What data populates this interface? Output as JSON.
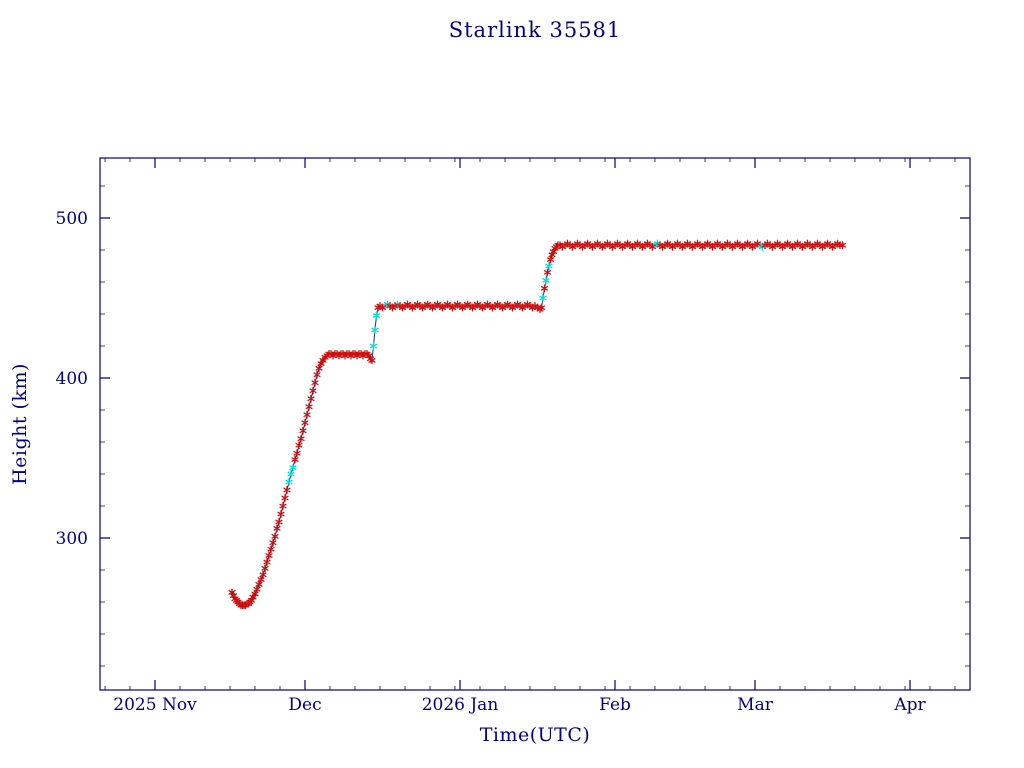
{
  "chart_data": {
    "type": "scatter",
    "title": "Starlink 35581",
    "xlabel": "Time(UTC)",
    "ylabel": "Height (km)",
    "x_unit": "days since 2025-11-01",
    "xlim": [
      -11,
      163
    ],
    "ylim": [
      205,
      537.5
    ],
    "grid": false,
    "legend": "none",
    "x_ticks": [
      {
        "day": 0,
        "label": "2025 Nov"
      },
      {
        "day": 30,
        "label": "Dec"
      },
      {
        "day": 61,
        "label": "2026 Jan"
      },
      {
        "day": 92,
        "label": "Feb"
      },
      {
        "day": 120,
        "label": "Mar"
      },
      {
        "day": 151,
        "label": "Apr"
      }
    ],
    "x_minor_step": 5,
    "y_ticks": [
      300,
      400,
      500
    ],
    "y_minor_step": 20,
    "colors": {
      "marker_primary": "#cc1010",
      "marker_secondary": "#00dcdc",
      "line": "#14145f",
      "axis": "#000082",
      "text": "#000082"
    },
    "series": [
      {
        "name": "height",
        "marker": "asterisk",
        "points": [
          [
            15.4,
            266
          ],
          [
            15.7,
            264
          ],
          [
            16.0,
            262
          ],
          [
            16.3,
            261
          ],
          [
            16.6,
            260
          ],
          [
            16.9,
            259
          ],
          [
            17.2,
            258
          ],
          [
            17.5,
            258
          ],
          [
            17.8,
            258
          ],
          [
            18.1,
            258
          ],
          [
            18.4,
            259
          ],
          [
            18.7,
            259
          ],
          [
            19.0,
            260
          ],
          [
            19.3,
            261
          ],
          [
            19.6,
            263
          ],
          [
            20.0,
            265
          ],
          [
            20.4,
            268
          ],
          [
            20.8,
            271
          ],
          [
            21.2,
            274
          ],
          [
            21.6,
            277
          ],
          [
            22.0,
            281
          ],
          [
            22.4,
            285
          ],
          [
            22.8,
            289
          ],
          [
            23.2,
            293
          ],
          [
            23.6,
            297
          ],
          [
            24.0,
            301
          ],
          [
            24.4,
            306
          ],
          [
            24.8,
            310
          ],
          [
            25.2,
            315
          ],
          [
            25.6,
            320
          ],
          [
            26.0,
            325
          ],
          [
            26.4,
            330
          ],
          [
            26.8,
            335,
            "c"
          ],
          [
            27.2,
            340,
            "c"
          ],
          [
            27.6,
            344,
            "c"
          ],
          [
            28.0,
            349
          ],
          [
            28.4,
            353
          ],
          [
            28.8,
            358
          ],
          [
            29.2,
            362
          ],
          [
            29.6,
            367
          ],
          [
            30.0,
            372
          ],
          [
            30.4,
            377
          ],
          [
            30.8,
            382
          ],
          [
            31.2,
            387
          ],
          [
            31.6,
            392
          ],
          [
            32.0,
            397
          ],
          [
            32.4,
            402
          ],
          [
            32.8,
            406
          ],
          [
            33.2,
            409
          ],
          [
            33.6,
            411
          ],
          [
            34.0,
            413
          ],
          [
            34.4,
            414
          ],
          [
            34.8,
            415
          ],
          [
            35.2,
            415
          ],
          [
            35.6,
            414
          ],
          [
            36.0,
            415
          ],
          [
            36.4,
            415
          ],
          [
            36.8,
            414
          ],
          [
            37.2,
            415
          ],
          [
            37.6,
            415
          ],
          [
            38.0,
            414
          ],
          [
            38.4,
            415
          ],
          [
            38.8,
            415
          ],
          [
            39.2,
            414
          ],
          [
            39.6,
            415
          ],
          [
            40.0,
            415
          ],
          [
            40.4,
            414
          ],
          [
            40.8,
            415
          ],
          [
            41.2,
            415
          ],
          [
            41.6,
            414
          ],
          [
            42.0,
            415
          ],
          [
            42.4,
            415
          ],
          [
            42.8,
            414
          ],
          [
            43.1,
            412
          ],
          [
            43.4,
            411
          ],
          [
            43.7,
            420,
            "c"
          ],
          [
            44.0,
            430,
            "c"
          ],
          [
            44.3,
            439,
            "c"
          ],
          [
            44.6,
            444
          ],
          [
            45.0,
            445
          ],
          [
            45.5,
            444
          ],
          [
            46.0,
            445,
            "c"
          ],
          [
            46.5,
            446,
            "c"
          ],
          [
            47.0,
            445
          ],
          [
            47.5,
            444
          ],
          [
            48.0,
            445
          ],
          [
            48.5,
            446,
            "c"
          ],
          [
            49.0,
            445
          ],
          [
            49.5,
            444
          ],
          [
            50.0,
            445
          ],
          [
            50.5,
            446
          ],
          [
            51.0,
            445
          ],
          [
            51.5,
            444
          ],
          [
            52.0,
            445
          ],
          [
            52.5,
            446
          ],
          [
            53.0,
            445
          ],
          [
            53.5,
            444
          ],
          [
            54.0,
            445
          ],
          [
            54.5,
            446
          ],
          [
            55.0,
            445
          ],
          [
            55.5,
            444
          ],
          [
            56.0,
            445
          ],
          [
            56.5,
            446
          ],
          [
            57.0,
            445
          ],
          [
            57.5,
            444
          ],
          [
            58.0,
            445
          ],
          [
            58.5,
            446
          ],
          [
            59.0,
            445
          ],
          [
            59.5,
            444
          ],
          [
            60.0,
            445
          ],
          [
            60.5,
            446
          ],
          [
            61.0,
            445
          ],
          [
            61.5,
            444
          ],
          [
            62.0,
            445
          ],
          [
            62.5,
            446
          ],
          [
            63.0,
            445
          ],
          [
            63.5,
            444
          ],
          [
            64.0,
            445
          ],
          [
            64.5,
            446
          ],
          [
            65.0,
            445
          ],
          [
            65.5,
            444
          ],
          [
            66.0,
            445
          ],
          [
            66.5,
            446
          ],
          [
            67.0,
            445
          ],
          [
            67.5,
            444
          ],
          [
            68.0,
            445
          ],
          [
            68.5,
            446
          ],
          [
            69.0,
            445
          ],
          [
            69.5,
            444
          ],
          [
            70.0,
            445
          ],
          [
            70.5,
            446
          ],
          [
            71.0,
            445
          ],
          [
            71.5,
            444
          ],
          [
            72.0,
            445
          ],
          [
            72.5,
            446
          ],
          [
            73.0,
            445
          ],
          [
            73.5,
            444
          ],
          [
            74.0,
            445
          ],
          [
            74.5,
            446
          ],
          [
            75.0,
            445
          ],
          [
            75.5,
            444
          ],
          [
            76.0,
            445
          ],
          [
            76.5,
            444
          ],
          [
            77.0,
            443
          ],
          [
            77.3,
            444
          ],
          [
            77.6,
            450,
            "c"
          ],
          [
            77.9,
            456
          ],
          [
            78.2,
            461,
            "c"
          ],
          [
            78.5,
            466
          ],
          [
            78.8,
            470,
            "c"
          ],
          [
            79.1,
            474
          ],
          [
            79.4,
            477
          ],
          [
            79.7,
            479
          ],
          [
            80.0,
            481
          ],
          [
            80.3,
            482
          ],
          [
            80.6,
            483
          ],
          [
            81.0,
            483
          ],
          [
            81.5,
            482
          ],
          [
            82.0,
            483
          ],
          [
            82.5,
            484
          ],
          [
            83.0,
            483
          ],
          [
            83.5,
            482
          ],
          [
            84.0,
            483
          ],
          [
            84.5,
            484
          ],
          [
            85.0,
            483
          ],
          [
            85.5,
            482
          ],
          [
            86.0,
            483
          ],
          [
            86.5,
            484
          ],
          [
            87.0,
            483
          ],
          [
            87.5,
            482
          ],
          [
            88.0,
            483
          ],
          [
            88.5,
            484
          ],
          [
            89.0,
            483
          ],
          [
            89.5,
            482
          ],
          [
            90.0,
            483
          ],
          [
            90.5,
            484
          ],
          [
            91.0,
            483
          ],
          [
            91.5,
            482
          ],
          [
            92.0,
            483
          ],
          [
            92.5,
            484
          ],
          [
            93.0,
            483
          ],
          [
            93.5,
            482
          ],
          [
            94.0,
            483
          ],
          [
            94.5,
            484
          ],
          [
            95.0,
            483
          ],
          [
            95.5,
            482
          ],
          [
            96.0,
            483
          ],
          [
            96.5,
            484
          ],
          [
            97.0,
            483
          ],
          [
            97.5,
            482
          ],
          [
            98.0,
            483
          ],
          [
            98.5,
            484
          ],
          [
            99.0,
            483
          ],
          [
            99.5,
            482
          ],
          [
            100.0,
            483,
            "c"
          ],
          [
            100.5,
            484,
            "c"
          ],
          [
            101.0,
            483
          ],
          [
            101.5,
            482
          ],
          [
            102.0,
            483
          ],
          [
            102.5,
            484
          ],
          [
            103.0,
            483
          ],
          [
            103.5,
            482
          ],
          [
            104.0,
            483
          ],
          [
            104.5,
            484
          ],
          [
            105.0,
            483
          ],
          [
            105.5,
            482
          ],
          [
            106.0,
            483
          ],
          [
            106.5,
            484
          ],
          [
            107.0,
            483
          ],
          [
            107.5,
            482
          ],
          [
            108.0,
            483
          ],
          [
            108.5,
            484
          ],
          [
            109.0,
            483
          ],
          [
            109.5,
            482
          ],
          [
            110.0,
            483
          ],
          [
            110.5,
            484
          ],
          [
            111.0,
            483
          ],
          [
            111.5,
            482
          ],
          [
            112.0,
            483
          ],
          [
            112.5,
            484
          ],
          [
            113.0,
            483
          ],
          [
            113.5,
            482
          ],
          [
            114.0,
            483
          ],
          [
            114.5,
            484
          ],
          [
            115.0,
            483
          ],
          [
            115.5,
            482
          ],
          [
            116.0,
            483
          ],
          [
            116.5,
            484
          ],
          [
            117.0,
            483
          ],
          [
            117.5,
            482
          ],
          [
            118.0,
            483
          ],
          [
            118.5,
            484
          ],
          [
            119.0,
            483
          ],
          [
            119.5,
            482
          ],
          [
            120.0,
            483
          ],
          [
            120.5,
            484
          ],
          [
            121.0,
            483,
            "c"
          ],
          [
            121.5,
            482,
            "c"
          ],
          [
            122.0,
            483
          ],
          [
            122.5,
            484
          ],
          [
            123.0,
            483
          ],
          [
            123.5,
            482
          ],
          [
            124.0,
            483
          ],
          [
            124.5,
            484
          ],
          [
            125.0,
            483
          ],
          [
            125.5,
            482
          ],
          [
            126.0,
            483
          ],
          [
            126.5,
            484
          ],
          [
            127.0,
            483
          ],
          [
            127.5,
            482
          ],
          [
            128.0,
            483
          ],
          [
            128.5,
            484
          ],
          [
            129.0,
            483
          ],
          [
            129.5,
            482
          ],
          [
            130.0,
            483
          ],
          [
            130.5,
            484
          ],
          [
            131.0,
            483
          ],
          [
            131.5,
            482
          ],
          [
            132.0,
            483
          ],
          [
            132.5,
            484
          ],
          [
            133.0,
            483
          ],
          [
            133.5,
            482
          ],
          [
            134.0,
            483
          ],
          [
            134.5,
            484
          ],
          [
            135.0,
            483
          ],
          [
            135.5,
            482
          ],
          [
            136.0,
            483
          ],
          [
            136.5,
            484
          ],
          [
            137.0,
            483
          ],
          [
            137.5,
            483
          ]
        ]
      }
    ]
  }
}
